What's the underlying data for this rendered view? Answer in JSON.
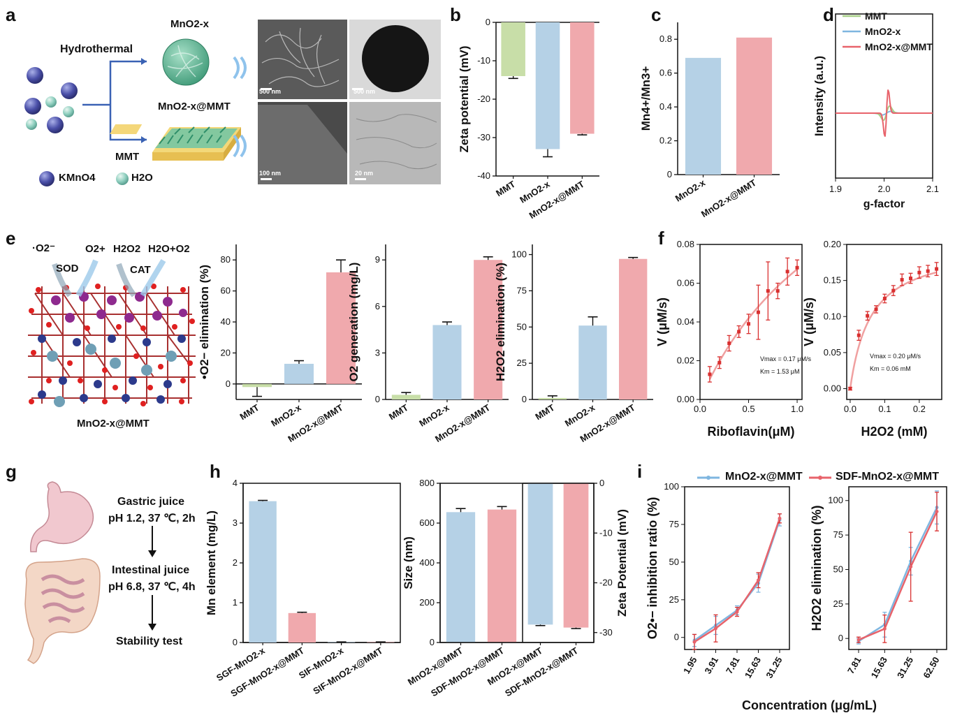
{
  "panels": {
    "a": {
      "letter": "a",
      "hydrothermal": "Hydrothermal",
      "mnox": "MnO2-x",
      "mnox_mmt": "MnO2-x@MMT",
      "mmt": "MMT",
      "legend_kmno4": "KMnO4",
      "legend_h2o": "H2O",
      "scale_bars": [
        "500 nm",
        "500 nm",
        "100 nm",
        "20 nm"
      ]
    },
    "b": {
      "letter": "b"
    },
    "c": {
      "letter": "c"
    },
    "d": {
      "letter": "d"
    },
    "e": {
      "letter": "e",
      "sod": "SOD",
      "cat": "CAT",
      "o2rad": "·O2⁻",
      "o2plus": "O2+",
      "h2o2": "H2O2",
      "h2oo2": "H2O+O2",
      "caption": "MnO2-x@MMT"
    },
    "f": {
      "letter": "f",
      "left_ann": [
        "Vmax = 0.17 μM/s",
        "Km = 1.53 μM"
      ],
      "right_ann": [
        "Vmax = 0.20 μM/s",
        "Km = 0.06 mM"
      ]
    },
    "g": {
      "letter": "g",
      "step1": [
        "Gastric juice",
        "pH 1.2, 37 ℃, 2h"
      ],
      "step2": [
        "Intestinal juice",
        "pH 6.8, 37 ℃, 4h"
      ],
      "step3": "Stability test"
    },
    "h": {
      "letter": "h"
    },
    "i": {
      "letter": "i",
      "legend": [
        "MnO2-x@MMT",
        "SDF-MnO2-x@MMT"
      ],
      "shared_xlabel": "Concentration (μg/mL)"
    }
  },
  "colors": {
    "green": "#c8dea8",
    "blue": "#b5d1e6",
    "pink": "#f0a9ad",
    "line_blue": "#7fb6e0",
    "line_red": "#e8636b",
    "err_red": "#d93030"
  },
  "chart_data": [
    {
      "id": "b",
      "type": "bar",
      "categories": [
        "MMT",
        "MnO2-x",
        "MnO2-x@MMT"
      ],
      "values": [
        -14,
        -33,
        -29
      ],
      "errors": [
        0.6,
        2,
        0.3
      ],
      "colors": [
        "green",
        "blue",
        "pink"
      ],
      "ylabel": "Zeta potential (mV)",
      "ylim": [
        -40,
        0
      ],
      "yticks": [
        0,
        -10,
        -20,
        -30,
        -40
      ],
      "xaxis_top": true
    },
    {
      "id": "c",
      "type": "bar",
      "categories": [
        "MnO2-x",
        "MnO2-x@MMT"
      ],
      "values": [
        0.69,
        0.81
      ],
      "colors": [
        "blue",
        "pink"
      ],
      "ylabel": "Mn4+/Mn3+",
      "ylim": [
        0,
        0.9
      ],
      "yticks": [
        0,
        0.2,
        0.4,
        0.6,
        0.8
      ]
    },
    {
      "id": "d",
      "type": "line",
      "xlabel": "g-factor",
      "ylabel": "Intensity (a.u.)",
      "xlim": [
        1.9,
        2.1
      ],
      "xticks": [
        1.9,
        2.0,
        2.1
      ],
      "legend": [
        "MMT",
        "MnO2-x",
        "MnO2-x@MMT"
      ],
      "legend_position": "top-right"
    },
    {
      "id": "e1",
      "type": "bar",
      "categories": [
        "MMT",
        "MnO2-x",
        "MnO2-x@MMT"
      ],
      "values": [
        -2,
        13,
        72
      ],
      "errors": [
        6,
        2,
        8
      ],
      "colors": [
        "green",
        "blue",
        "pink"
      ],
      "ylabel": "•O2− elimination (%)",
      "ylim": [
        -10,
        90
      ],
      "yticks": [
        0,
        20,
        40,
        60,
        80
      ]
    },
    {
      "id": "e2",
      "type": "bar",
      "categories": [
        "MMT",
        "MnO2-x",
        "MnO2-x@MMT"
      ],
      "values": [
        0.3,
        4.8,
        9.0
      ],
      "errors": [
        0.15,
        0.2,
        0.2
      ],
      "colors": [
        "green",
        "blue",
        "pink"
      ],
      "ylabel": "O2 generation (mg/L)",
      "ylim": [
        0,
        10
      ],
      "yticks": [
        0,
        3,
        6,
        9
      ]
    },
    {
      "id": "e3",
      "type": "bar",
      "categories": [
        "MMT",
        "MnO2-x",
        "MnO2-x@MMT"
      ],
      "values": [
        1,
        51,
        97
      ],
      "errors": [
        1.5,
        6,
        1
      ],
      "colors": [
        "green",
        "blue",
        "pink"
      ],
      "ylabel": "H2O2 elimination (%)",
      "ylim": [
        0,
        107
      ],
      "yticks": [
        0,
        25,
        50,
        75,
        100
      ]
    },
    {
      "id": "f1",
      "type": "scatter",
      "x": [
        0.1,
        0.2,
        0.3,
        0.4,
        0.5,
        0.6,
        0.7,
        0.8,
        0.9,
        1.0
      ],
      "y": [
        0.013,
        0.019,
        0.029,
        0.035,
        0.039,
        0.045,
        0.056,
        0.056,
        0.066,
        0.068
      ],
      "errors": [
        0.004,
        0.003,
        0.004,
        0.003,
        0.005,
        0.014,
        0.015,
        0.004,
        0.007,
        0.004
      ],
      "fit": {
        "vmax": 0.17,
        "km": 1.53
      },
      "xlabel": "Riboflavin(μM)",
      "ylabel": "V (μM/s)",
      "xlim": [
        0,
        1.05
      ],
      "ylim": [
        0,
        0.08
      ],
      "xticks": [
        0,
        0.5,
        1.0
      ],
      "yticks": [
        0,
        0.02,
        0.04,
        0.06,
        0.08
      ]
    },
    {
      "id": "f2",
      "type": "scatter",
      "x": [
        0,
        0.025,
        0.05,
        0.075,
        0.1,
        0.125,
        0.15,
        0.175,
        0.2,
        0.225,
        0.25
      ],
      "y": [
        0,
        0.074,
        0.101,
        0.11,
        0.125,
        0.136,
        0.151,
        0.153,
        0.161,
        0.163,
        0.166
      ],
      "errors": [
        0.002,
        0.007,
        0.006,
        0.005,
        0.006,
        0.007,
        0.008,
        0.007,
        0.008,
        0.008,
        0.009
      ],
      "fit": {
        "vmax": 0.2,
        "km": 0.06
      },
      "xlabel": "H2O2 (mM)",
      "ylabel": "V (μM/s)",
      "xlim": [
        -0.01,
        0.265
      ],
      "ylim": [
        -0.015,
        0.2
      ],
      "xticks": [
        0,
        0.1,
        0.2
      ],
      "yticks": [
        0,
        0.05,
        0.1,
        0.15,
        0.2
      ]
    },
    {
      "id": "h1",
      "type": "bar",
      "categories": [
        "SGF-MnO2-x",
        "SGF-MnO2-x@MMT",
        "SIF-MnO2-x",
        "SIF-MnO2-x@MMT"
      ],
      "values": [
        3.55,
        0.74,
        0.01,
        0.01
      ],
      "errors": [
        0.02,
        0.02,
        0.005,
        0.005
      ],
      "colors": [
        "blue",
        "pink",
        "blue",
        "pink"
      ],
      "ylabel": "Mn element (mg/L)",
      "ylim": [
        0,
        4
      ],
      "yticks": [
        0,
        1,
        2,
        3,
        4
      ]
    },
    {
      "id": "h2",
      "type": "bar",
      "categories": [
        "MnO2-x@MMT",
        "SDF-MnO2-x@MMT"
      ],
      "values": [
        655,
        668
      ],
      "errors": [
        18,
        15
      ],
      "colors": [
        "blue",
        "pink"
      ],
      "ylabel": "Size (nm)",
      "ylim": [
        0,
        800
      ],
      "yticks": [
        0,
        200,
        400,
        600,
        800
      ]
    },
    {
      "id": "h3",
      "type": "bar",
      "categories": [
        "MnO2-x@MMT",
        "SDF-MnO2-x@MMT"
      ],
      "values": [
        -28.4,
        -29.0
      ],
      "errors": [
        0.2,
        0.2
      ],
      "colors": [
        "blue",
        "pink"
      ],
      "ylabel": "Zeta Potential (mV)",
      "ylim": [
        -32,
        0
      ],
      "yticks": [
        0,
        -10,
        -20,
        -30
      ],
      "yaxis_right": true,
      "xaxis_top": true
    },
    {
      "id": "i1",
      "type": "line",
      "categories": [
        "1.95",
        "3.91",
        "7.81",
        "15.63",
        "31.25"
      ],
      "series": [
        {
          "name": "MnO2-x@MMT",
          "values": [
            -2,
            8,
            18,
            36,
            78
          ],
          "errors": [
            4,
            6,
            3,
            6,
            4
          ]
        },
        {
          "name": "SDF-MnO2-x@MMT",
          "values": [
            -3,
            6,
            17,
            38,
            79
          ],
          "errors": [
            5,
            9,
            3,
            5,
            3
          ]
        }
      ],
      "ylabel": "O2•− inhibition ratio (%)",
      "ylim": [
        -8,
        100
      ],
      "yticks": [
        0,
        25,
        50,
        75,
        100
      ]
    },
    {
      "id": "i2",
      "type": "line",
      "categories": [
        "7.81",
        "15.63",
        "31.25",
        "62.50"
      ],
      "series": [
        {
          "name": "MnO2-x@MMT",
          "values": [
            -2,
            10,
            56,
            95
          ],
          "errors": [
            2,
            9,
            10,
            12
          ]
        },
        {
          "name": "SDF-MnO2-x@MMT",
          "values": [
            -1,
            7,
            52,
            92
          ],
          "errors": [
            2,
            10,
            25,
            14
          ]
        }
      ],
      "ylabel": "H2O2 elimination (%)",
      "ylim": [
        -8,
        110
      ],
      "yticks": [
        0,
        25,
        50,
        75,
        100
      ]
    }
  ]
}
